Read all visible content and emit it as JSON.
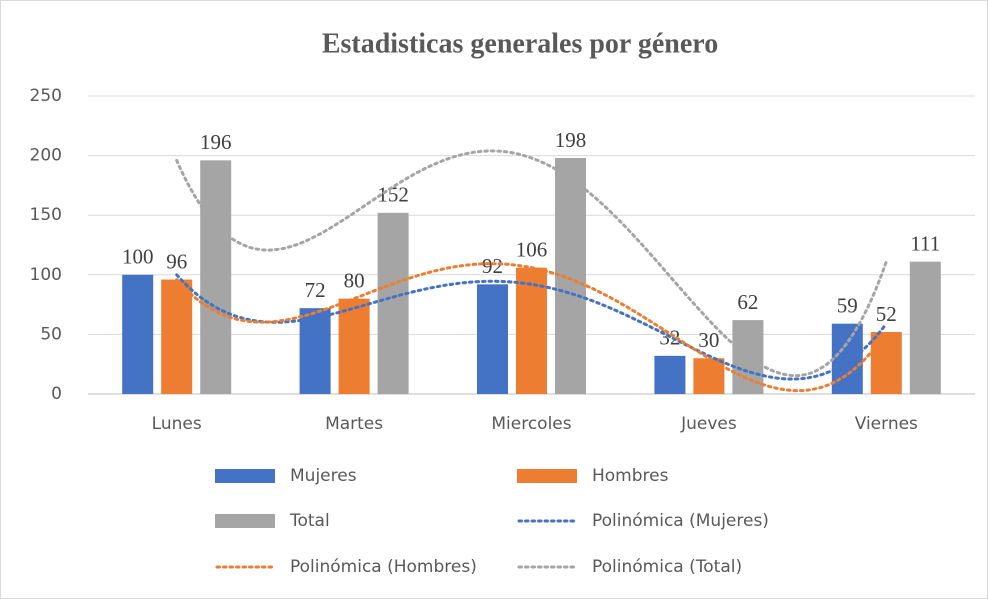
{
  "chart_data": {
    "type": "bar",
    "title": "Estadisticas generales por género",
    "categories": [
      "Lunes",
      "Martes",
      "Miercoles",
      "Jueves",
      "Viernes"
    ],
    "series": [
      {
        "name": "Mujeres",
        "color": "#4472c4",
        "values": [
          100,
          72,
          92,
          32,
          59
        ]
      },
      {
        "name": "Hombres",
        "color": "#ed7d31",
        "values": [
          96,
          80,
          106,
          30,
          52
        ]
      },
      {
        "name": "Total",
        "color": "#a5a5a5",
        "values": [
          196,
          152,
          198,
          62,
          111
        ]
      }
    ],
    "trendlines": [
      {
        "name": "Polinómica (Mujeres)",
        "series": 0,
        "order": 4,
        "color": "#4472c4"
      },
      {
        "name": "Polinómica (Hombres)",
        "series": 1,
        "order": 4,
        "color": "#ed7d31"
      },
      {
        "name": "Polinómica (Total)",
        "series": 2,
        "order": 4,
        "color": "#a5a5a5"
      }
    ],
    "ylim": [
      0,
      250
    ],
    "yticks": [
      0,
      50,
      100,
      150,
      200,
      250
    ],
    "grid": true,
    "legend": "bottom"
  }
}
